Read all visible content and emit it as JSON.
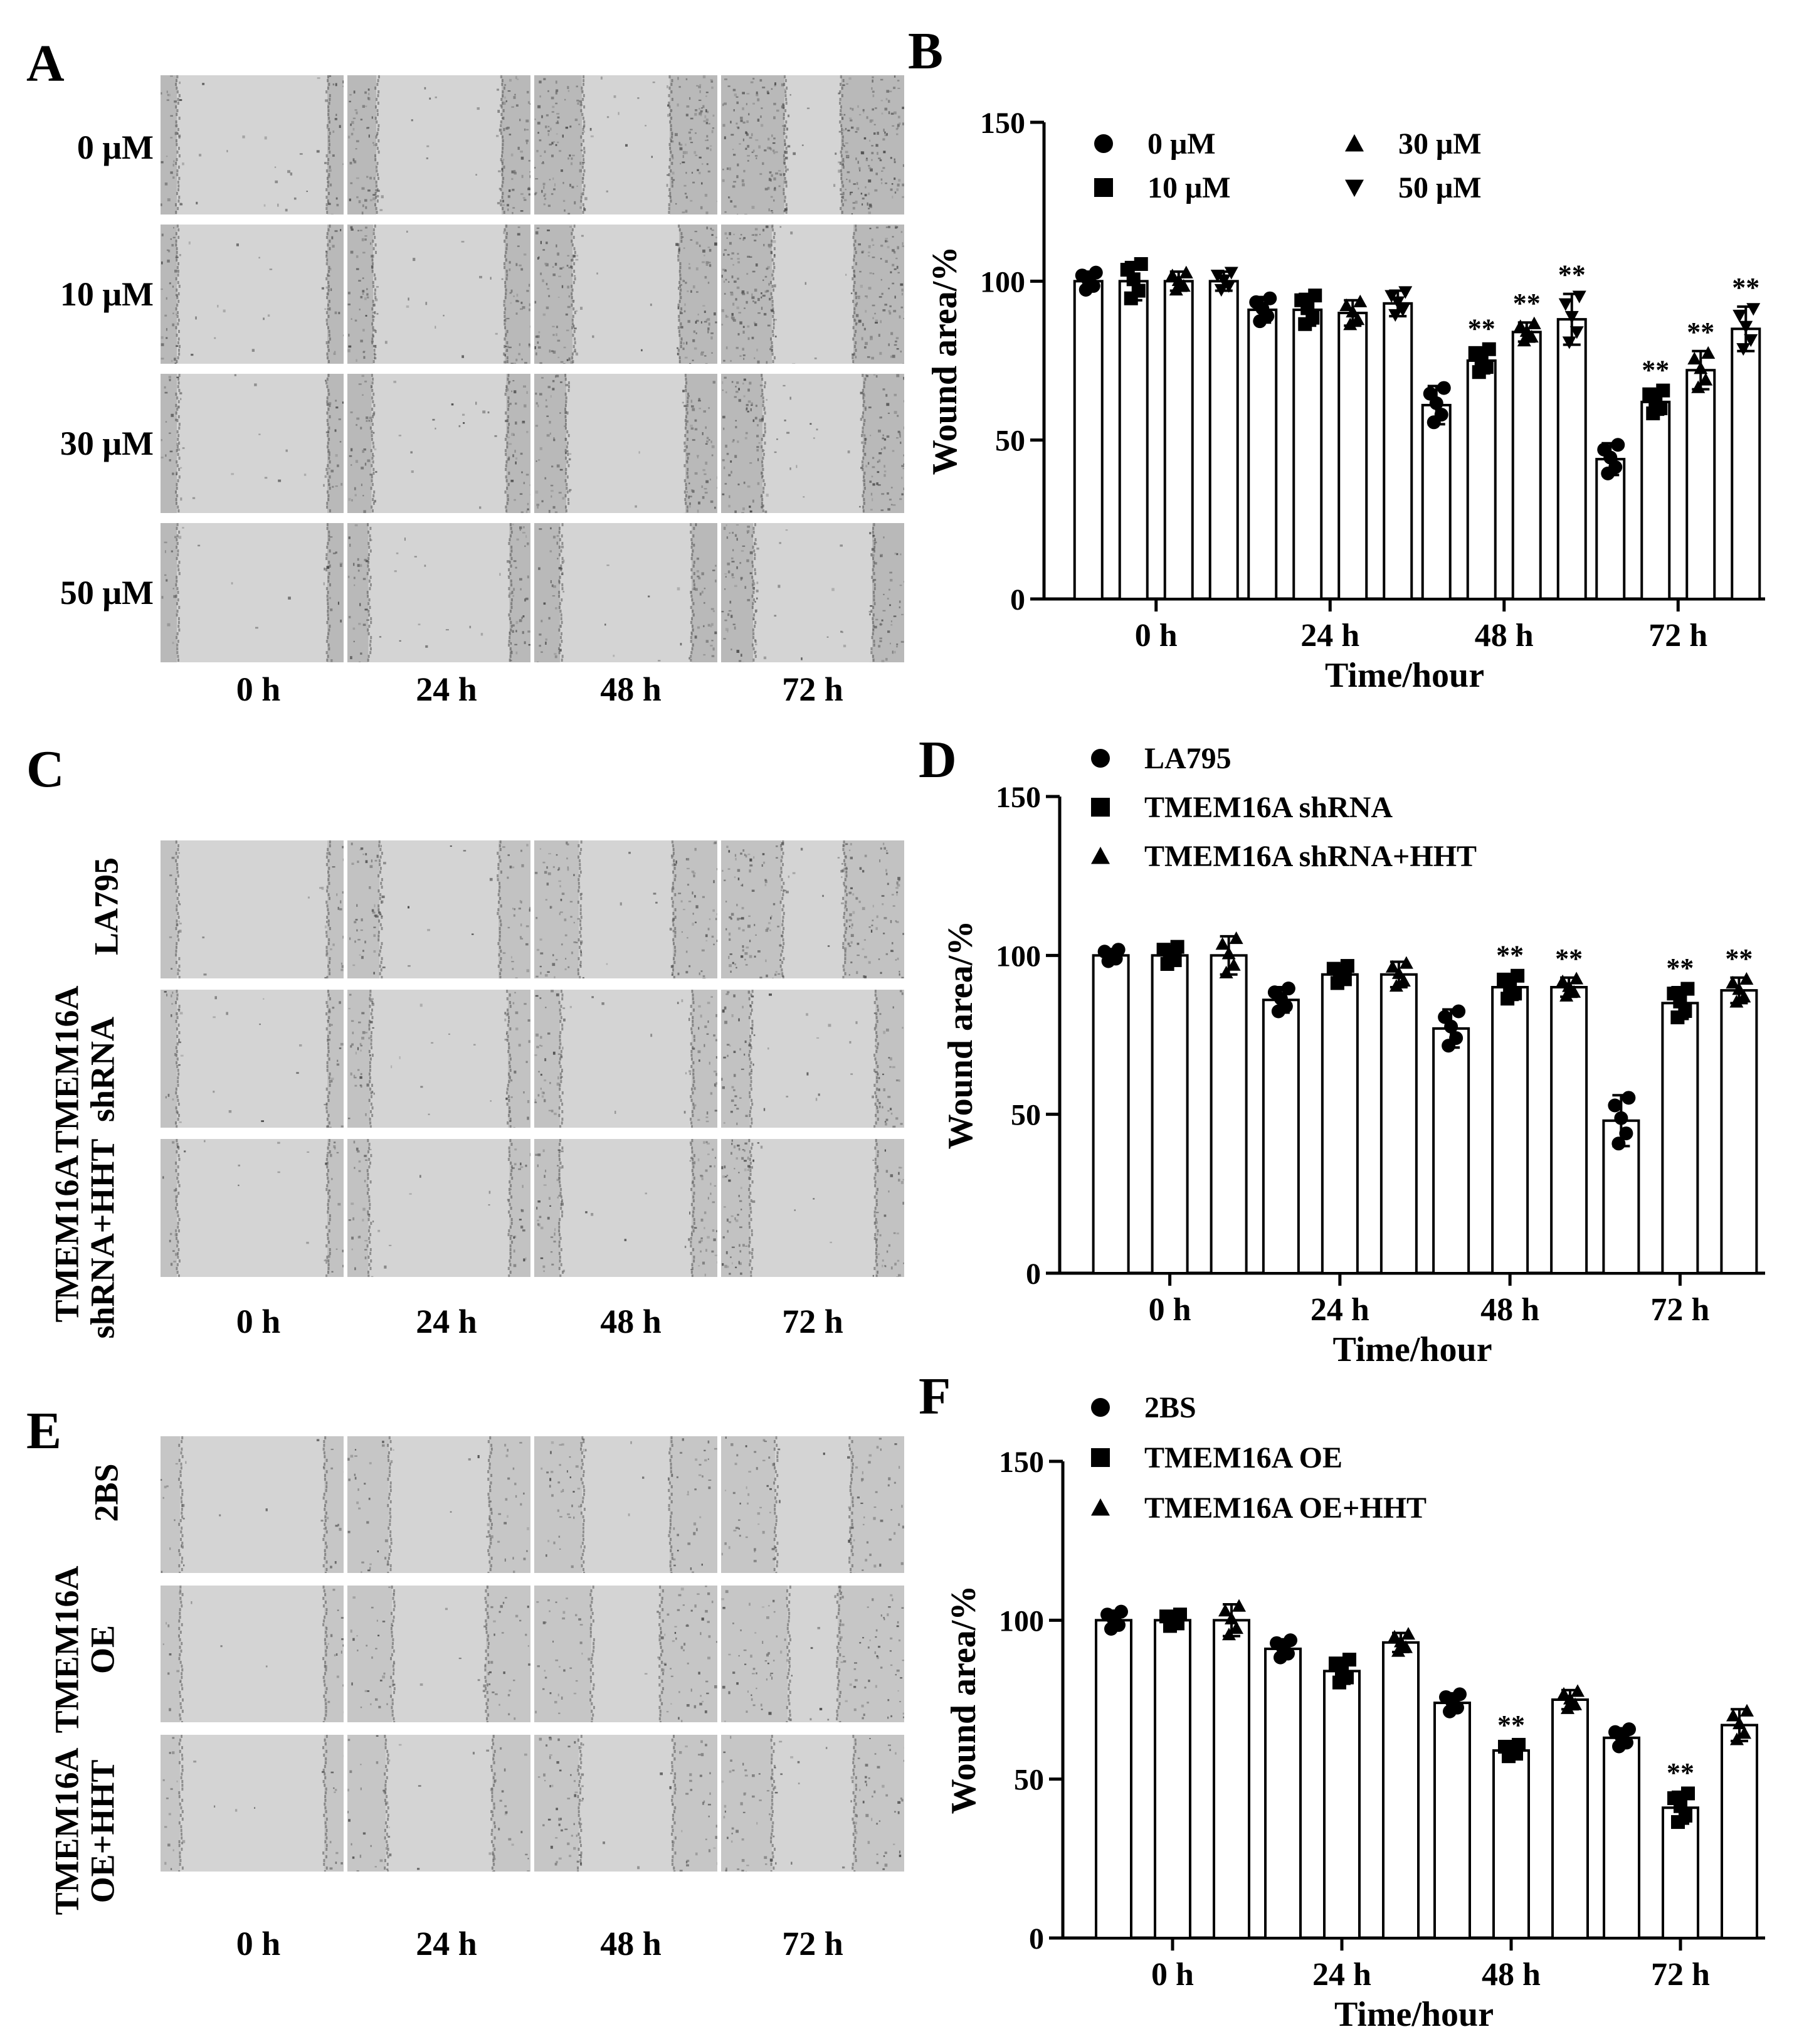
{
  "panels": {
    "A": {
      "label": "A",
      "rows": [
        "0 μM",
        "10 μM",
        "30 μM",
        "50 μM"
      ],
      "columns": [
        "0 h",
        "24 h",
        "48 h",
        "72 h"
      ]
    },
    "C": {
      "label": "C",
      "rows": [
        "LA795",
        "TMEM16A shRNA",
        "TMEM16A shRNA+HHT"
      ],
      "row_lines": [
        [
          "LA795"
        ],
        [
          "TMEM16A",
          "shRNA"
        ],
        [
          "TMEM16A",
          "shRNA+HHT"
        ]
      ],
      "columns": [
        "0 h",
        "24 h",
        "48 h",
        "72 h"
      ]
    },
    "E": {
      "label": "E",
      "rows": [
        "2BS",
        "TMEM16A OE",
        "TMEM16A OE+HHT"
      ],
      "row_lines": [
        [
          "2BS"
        ],
        [
          "TMEM16A",
          "OE"
        ],
        [
          "TMEM16A",
          "OE+HHT"
        ]
      ],
      "columns": [
        "0 h",
        "24 h",
        "48 h",
        "72 h"
      ]
    }
  },
  "chart_data": [
    {
      "panel": "B",
      "type": "bar",
      "title": "",
      "xlabel": "Time/hour",
      "ylabel": "Wound area/%",
      "ylim": [
        0,
        150
      ],
      "yticks": [
        0,
        50,
        100,
        150
      ],
      "categories": [
        "0 h",
        "24 h",
        "48 h",
        "72 h"
      ],
      "legend_layout": "grid",
      "series": [
        {
          "name": "0 μM",
          "marker": "circle",
          "values": [
            100,
            91,
            61,
            44
          ],
          "errors": [
            3,
            4,
            6,
            5
          ],
          "sig": [
            "",
            "",
            "",
            ""
          ]
        },
        {
          "name": "10 μM",
          "marker": "square",
          "values": [
            100,
            91,
            75,
            62
          ],
          "errors": [
            6,
            5,
            4,
            4
          ],
          "sig": [
            "",
            "",
            "**",
            "**"
          ]
        },
        {
          "name": "30 μM",
          "marker": "triangle",
          "values": [
            100,
            90,
            84,
            72
          ],
          "errors": [
            3,
            4,
            3,
            6
          ],
          "sig": [
            "",
            "",
            "**",
            "**"
          ]
        },
        {
          "name": "50 μM",
          "marker": "triangle-down",
          "values": [
            100,
            93,
            88,
            85
          ],
          "errors": [
            3,
            4,
            8,
            7
          ],
          "sig": [
            "",
            "",
            "**",
            "**"
          ]
        }
      ]
    },
    {
      "panel": "D",
      "type": "bar",
      "title": "",
      "xlabel": "Time/hour",
      "ylabel": "Wound area/%",
      "ylim": [
        0,
        150
      ],
      "yticks": [
        0,
        50,
        100,
        150
      ],
      "categories": [
        "0 h",
        "24 h",
        "48 h",
        "72 h"
      ],
      "legend_layout": "list",
      "series": [
        {
          "name": "LA795",
          "marker": "circle",
          "values": [
            100,
            86,
            77,
            48
          ],
          "errors": [
            2,
            4,
            6,
            8
          ],
          "sig": [
            "",
            "",
            "",
            ""
          ]
        },
        {
          "name": "TMEM16A shRNA",
          "marker": "square",
          "values": [
            100,
            94,
            90,
            85
          ],
          "errors": [
            3,
            3,
            4,
            5
          ],
          "sig": [
            "",
            "",
            "**",
            "**"
          ]
        },
        {
          "name": "TMEM16A shRNA+HHT",
          "marker": "triangle",
          "values": [
            100,
            94,
            90,
            89
          ],
          "errors": [
            6,
            4,
            3,
            4
          ],
          "sig": [
            "",
            "",
            "**",
            "**"
          ]
        }
      ]
    },
    {
      "panel": "F",
      "type": "bar",
      "title": "",
      "xlabel": "Time/hour",
      "ylabel": "Wound area/%",
      "ylim": [
        0,
        150
      ],
      "yticks": [
        0,
        50,
        100,
        150
      ],
      "categories": [
        "0 h",
        "24 h",
        "48 h",
        "72 h"
      ],
      "legend_layout": "list",
      "series": [
        {
          "name": "2BS",
          "marker": "circle",
          "values": [
            100,
            91,
            74,
            63
          ],
          "errors": [
            3,
            3,
            3,
            3
          ],
          "sig": [
            "",
            "",
            "",
            ""
          ]
        },
        {
          "name": "TMEM16A OE",
          "marker": "square",
          "values": [
            100,
            84,
            59,
            41
          ],
          "errors": [
            2,
            4,
            2,
            5
          ],
          "sig": [
            "",
            "",
            "**",
            "**"
          ]
        },
        {
          "name": "TMEM16A OE+HHT",
          "marker": "triangle",
          "values": [
            100,
            93,
            75,
            67
          ],
          "errors": [
            5,
            3,
            3,
            5
          ],
          "sig": [
            "",
            "",
            "",
            ""
          ]
        }
      ]
    }
  ]
}
